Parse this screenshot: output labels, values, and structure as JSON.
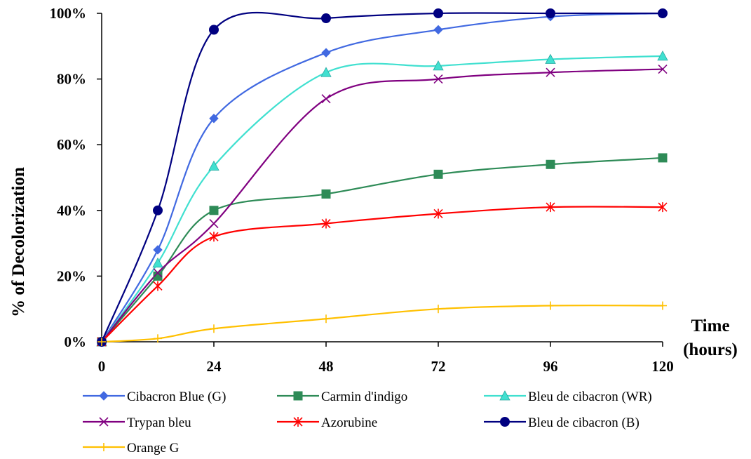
{
  "chart_data": {
    "type": "line",
    "xlabel": [
      "Time",
      "(hours)"
    ],
    "ylabel": "% of Decolorization",
    "xlim": [
      0,
      120
    ],
    "ylim": [
      0,
      100
    ],
    "xticks": [
      "0",
      "24",
      "48",
      "72",
      "96",
      "120"
    ],
    "yticks": [
      "0%",
      "20%",
      "40%",
      "60%",
      "80%",
      "100%"
    ],
    "grid": false,
    "smooth": true,
    "legend_position": "bottom",
    "series": [
      {
        "name": "Cibacron Blue (G)",
        "color": "#4169E1",
        "marker": "diamond",
        "x": [
          0,
          12,
          24,
          48,
          72,
          96,
          120
        ],
        "y": [
          0,
          28,
          68,
          88,
          95,
          99,
          100
        ]
      },
      {
        "name": "Carmin d'indigo",
        "color": "#2E8B57",
        "marker": "square",
        "x": [
          0,
          12,
          24,
          48,
          72,
          96,
          120
        ],
        "y": [
          0,
          20,
          40,
          45,
          51,
          54,
          56
        ]
      },
      {
        "name": "Bleu de cibacron (WR)",
        "color": "#40E0D0",
        "marker": "triangle",
        "x": [
          0,
          12,
          24,
          48,
          72,
          96,
          120
        ],
        "y": [
          0,
          24,
          53.5,
          82,
          84,
          86,
          87
        ]
      },
      {
        "name": "Trypan bleu",
        "color": "#800080",
        "marker": "x",
        "x": [
          0,
          12,
          24,
          48,
          72,
          96,
          120
        ],
        "y": [
          0,
          21,
          36,
          74,
          80,
          82,
          83
        ]
      },
      {
        "name": "Azorubine",
        "color": "#FF0000",
        "marker": "star",
        "x": [
          0,
          12,
          24,
          48,
          72,
          96,
          120
        ],
        "y": [
          0,
          17,
          32,
          36,
          39,
          41,
          41
        ]
      },
      {
        "name": "Bleu de cibacron (B)",
        "color": "#000080",
        "marker": "circle",
        "x": [
          0,
          12,
          24,
          48,
          72,
          96,
          120
        ],
        "y": [
          0,
          40,
          95,
          98.5,
          100,
          100,
          100
        ]
      },
      {
        "name": "Orange G",
        "color": "#FFC000",
        "marker": "plus",
        "x": [
          0,
          12,
          24,
          48,
          72,
          96,
          120
        ],
        "y": [
          0,
          1,
          4,
          7,
          10,
          11,
          11
        ]
      }
    ]
  }
}
